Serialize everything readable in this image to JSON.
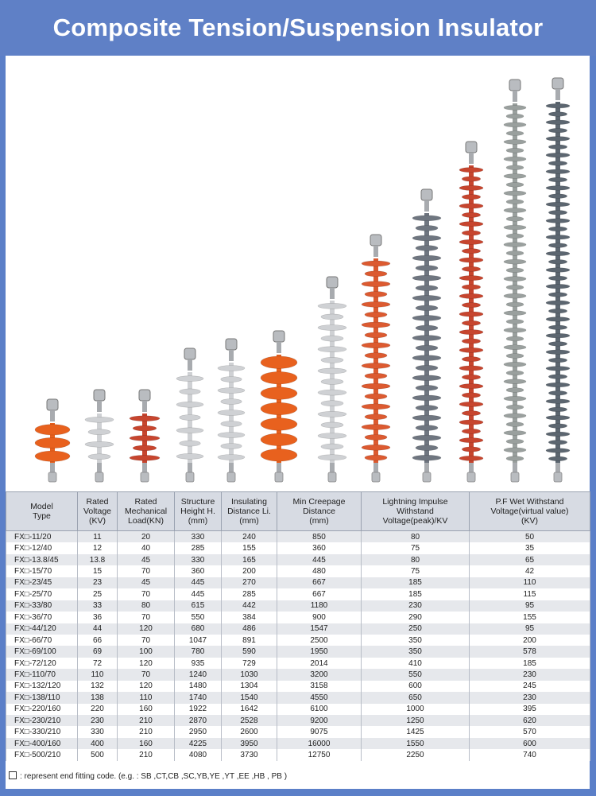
{
  "header": {
    "title": "Composite Tension/Suspension Insulator"
  },
  "table": {
    "headers": [
      "Model\nType",
      "Rated\nVoltage\n(KV)",
      "Rated\nMechanical\nLoad(KN)",
      "Structure\nHeight H.\n(mm)",
      "Insulating\nDistance Li.\n(mm)",
      "Min Creepage\nDistance\n(mm)",
      "Lightning Impulse\nWithstand\nVoltage(peak)/KV",
      "P.F Wet Withstand\nVoltage(virtual value)\n(KV)"
    ],
    "rows": [
      [
        "FX□-11/20",
        "11",
        "20",
        "330",
        "240",
        "850",
        "80",
        "50"
      ],
      [
        "FX□-12/40",
        "12",
        "40",
        "285",
        "155",
        "360",
        "75",
        "35"
      ],
      [
        "FX□-13.8/45",
        "13.8",
        "45",
        "330",
        "165",
        "445",
        "80",
        "65"
      ],
      [
        "FX□-15/70",
        "15",
        "70",
        "360",
        "200",
        "480",
        "75",
        "42"
      ],
      [
        "FX□-23/45",
        "23",
        "45",
        "445",
        "270",
        "667",
        "185",
        "110"
      ],
      [
        "FX□-25/70",
        "25",
        "70",
        "445",
        "285",
        "667",
        "185",
        "115"
      ],
      [
        "FX□-33/80",
        "33",
        "80",
        "615",
        "442",
        "1180",
        "230",
        "95"
      ],
      [
        "FX□-36/70",
        "36",
        "70",
        "550",
        "384",
        "900",
        "290",
        "155"
      ],
      [
        "FX□-44/120",
        "44",
        "120",
        "680",
        "486",
        "1547",
        "250",
        "95"
      ],
      [
        "FX□-66/70",
        "66",
        "70",
        "1047",
        "891",
        "2500",
        "350",
        "200"
      ],
      [
        "FX□-69/100",
        "69",
        "100",
        "780",
        "590",
        "1950",
        "350",
        "578"
      ],
      [
        "FX□-72/120",
        "72",
        "120",
        "935",
        "729",
        "2014",
        "410",
        "185"
      ],
      [
        "FX□-110/70",
        "110",
        "70",
        "1240",
        "1030",
        "3200",
        "550",
        "230"
      ],
      [
        "FX□-132/120",
        "132",
        "120",
        "1480",
        "1304",
        "3158",
        "600",
        "245"
      ],
      [
        "FX□-138/110",
        "138",
        "110",
        "1740",
        "1540",
        "4550",
        "650",
        "230"
      ],
      [
        "FX□-220/160",
        "220",
        "160",
        "1922",
        "1642",
        "6100",
        "1000",
        "395"
      ],
      [
        "FX□-230/210",
        "230",
        "210",
        "2870",
        "2528",
        "9200",
        "1250",
        "620"
      ],
      [
        "FX□-330/210",
        "330",
        "210",
        "2950",
        "2600",
        "9075",
        "1425",
        "570"
      ],
      [
        "FX□-400/160",
        "400",
        "160",
        "4225",
        "3950",
        "16000",
        "1550",
        "600"
      ],
      [
        "FX□-500/210",
        "500",
        "210",
        "4080",
        "3730",
        "12750",
        "2250",
        "740"
      ]
    ]
  },
  "note": {
    "text": ": represent end fitting code. (e.g. : SB ,CT,CB ,SC,YB,YE ,YT ,EE ,HB , PB )"
  },
  "illustration": {
    "insulators": [
      {
        "name": "insulator-1",
        "color": "#e8611e"
      },
      {
        "name": "insulator-2",
        "color": "#cfd1d4"
      },
      {
        "name": "insulator-3",
        "color": "#c7452e"
      },
      {
        "name": "insulator-4",
        "color": "#cfd1d4"
      },
      {
        "name": "insulator-5",
        "color": "#cfd1d4"
      },
      {
        "name": "insulator-6",
        "color": "#e8611e"
      },
      {
        "name": "insulator-7",
        "color": "#cfd1d4"
      },
      {
        "name": "insulator-8",
        "color": "#dc5a30"
      },
      {
        "name": "insulator-9",
        "color": "#6f7680"
      },
      {
        "name": "insulator-10",
        "color": "#c7452e"
      },
      {
        "name": "insulator-11",
        "color": "#9aa09e"
      },
      {
        "name": "insulator-12",
        "color": "#5c6670"
      }
    ]
  }
}
